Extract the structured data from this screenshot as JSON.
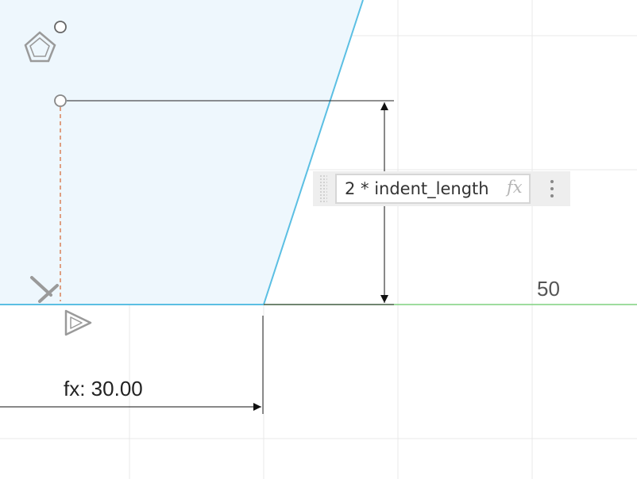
{
  "sketch": {
    "horizontal_dimension": "fx: 30.00",
    "grid_label": "50"
  },
  "dimension_editor": {
    "expression_value": "2 * indent_length",
    "fx_label": "fx"
  },
  "colors": {
    "profile_fill": "#eef7fd",
    "sketch_line": "#5bbfe3",
    "axis_green": "#7fd17f",
    "grid": "#e8e8e8",
    "construction_line": "#d9825a"
  },
  "icons": [
    "polygon-constraint-icon",
    "perpendicular-constraint-icon",
    "triangle-constraint-icon",
    "more-options-icon",
    "fx-icon"
  ]
}
